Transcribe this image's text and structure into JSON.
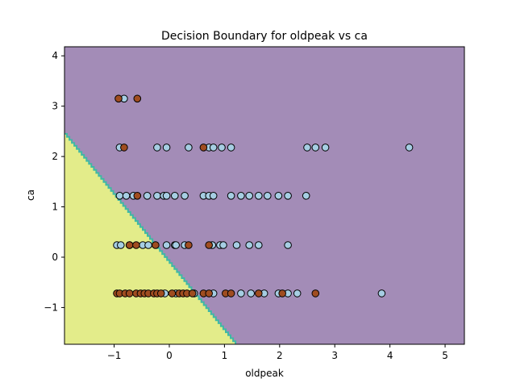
{
  "chart_data": {
    "type": "scatter",
    "title": "Decision Boundary for oldpeak vs ca",
    "xlabel": "oldpeak",
    "ylabel": "ca",
    "xlim": [
      -1.9,
      5.35
    ],
    "ylim": [
      -1.73,
      4.18
    ],
    "xticks": [
      -1,
      0,
      1,
      2,
      3,
      4,
      5
    ],
    "yticks": [
      -1,
      0,
      1,
      2,
      3,
      4
    ],
    "grid": false,
    "legend": "none",
    "regions": {
      "boundary_line": {
        "x": [
          -1.9,
          1.2
        ],
        "y": [
          2.45,
          -1.73
        ]
      },
      "lower_left_color": "#e3ec8a",
      "upper_right_color": "#a38cb7",
      "boundary_color": "#3fb8a5"
    },
    "colors": {
      "class_0": "#a6cee3",
      "class_1": "#a04d20",
      "edge": "#000000"
    },
    "series": [
      {
        "class": 0,
        "points": [
          [
            -0.82,
            3.15
          ],
          [
            -0.9,
            2.18
          ],
          [
            -0.22,
            2.18
          ],
          [
            -0.05,
            2.18
          ],
          [
            0.35,
            2.18
          ],
          [
            0.72,
            2.18
          ],
          [
            0.8,
            2.18
          ],
          [
            0.95,
            2.18
          ],
          [
            1.12,
            2.18
          ],
          [
            2.5,
            2.18
          ],
          [
            2.65,
            2.18
          ],
          [
            2.83,
            2.18
          ],
          [
            4.35,
            2.18
          ],
          [
            -0.9,
            1.22
          ],
          [
            -0.78,
            1.22
          ],
          [
            -0.65,
            1.22
          ],
          [
            -0.4,
            1.22
          ],
          [
            -0.22,
            1.22
          ],
          [
            -0.1,
            1.22
          ],
          [
            -0.05,
            1.22
          ],
          [
            0.1,
            1.22
          ],
          [
            0.28,
            1.22
          ],
          [
            0.62,
            1.22
          ],
          [
            0.72,
            1.22
          ],
          [
            0.8,
            1.22
          ],
          [
            1.12,
            1.22
          ],
          [
            1.3,
            1.22
          ],
          [
            1.45,
            1.22
          ],
          [
            1.62,
            1.22
          ],
          [
            1.78,
            1.22
          ],
          [
            1.98,
            1.22
          ],
          [
            2.15,
            1.22
          ],
          [
            2.48,
            1.22
          ],
          [
            -0.95,
            0.24
          ],
          [
            -0.88,
            0.24
          ],
          [
            -0.72,
            0.24
          ],
          [
            -0.48,
            0.24
          ],
          [
            -0.38,
            0.24
          ],
          [
            -0.05,
            0.24
          ],
          [
            0.1,
            0.24
          ],
          [
            0.12,
            0.24
          ],
          [
            0.28,
            0.24
          ],
          [
            0.78,
            0.24
          ],
          [
            0.92,
            0.24
          ],
          [
            0.98,
            0.24
          ],
          [
            1.22,
            0.24
          ],
          [
            1.45,
            0.24
          ],
          [
            1.62,
            0.24
          ],
          [
            2.15,
            0.24
          ],
          [
            -0.08,
            -0.72
          ],
          [
            0.12,
            -0.72
          ],
          [
            0.45,
            -0.72
          ],
          [
            0.8,
            -0.72
          ],
          [
            1.3,
            -0.72
          ],
          [
            1.48,
            -0.72
          ],
          [
            1.72,
            -0.72
          ],
          [
            1.98,
            -0.72
          ],
          [
            2.15,
            -0.72
          ],
          [
            2.32,
            -0.72
          ],
          [
            3.85,
            -0.72
          ]
        ]
      },
      {
        "class": 1,
        "points": [
          [
            -0.92,
            3.15
          ],
          [
            -0.58,
            3.15
          ],
          [
            -0.82,
            2.18
          ],
          [
            0.62,
            2.18
          ],
          [
            -0.58,
            1.22
          ],
          [
            -0.72,
            0.24
          ],
          [
            -0.6,
            0.24
          ],
          [
            -0.25,
            0.24
          ],
          [
            0.35,
            0.24
          ],
          [
            0.72,
            0.24
          ],
          [
            -0.95,
            -0.72
          ],
          [
            -0.9,
            -0.72
          ],
          [
            -0.8,
            -0.72
          ],
          [
            -0.72,
            -0.72
          ],
          [
            -0.6,
            -0.72
          ],
          [
            -0.52,
            -0.72
          ],
          [
            -0.45,
            -0.72
          ],
          [
            -0.38,
            -0.72
          ],
          [
            -0.28,
            -0.72
          ],
          [
            -0.22,
            -0.72
          ],
          [
            -0.15,
            -0.72
          ],
          [
            0.05,
            -0.72
          ],
          [
            0.18,
            -0.72
          ],
          [
            0.25,
            -0.72
          ],
          [
            0.32,
            -0.72
          ],
          [
            0.42,
            -0.72
          ],
          [
            0.62,
            -0.72
          ],
          [
            0.72,
            -0.72
          ],
          [
            1.02,
            -0.72
          ],
          [
            1.12,
            -0.72
          ],
          [
            1.62,
            -0.72
          ],
          [
            2.05,
            -0.72
          ],
          [
            2.65,
            -0.72
          ]
        ]
      }
    ]
  }
}
